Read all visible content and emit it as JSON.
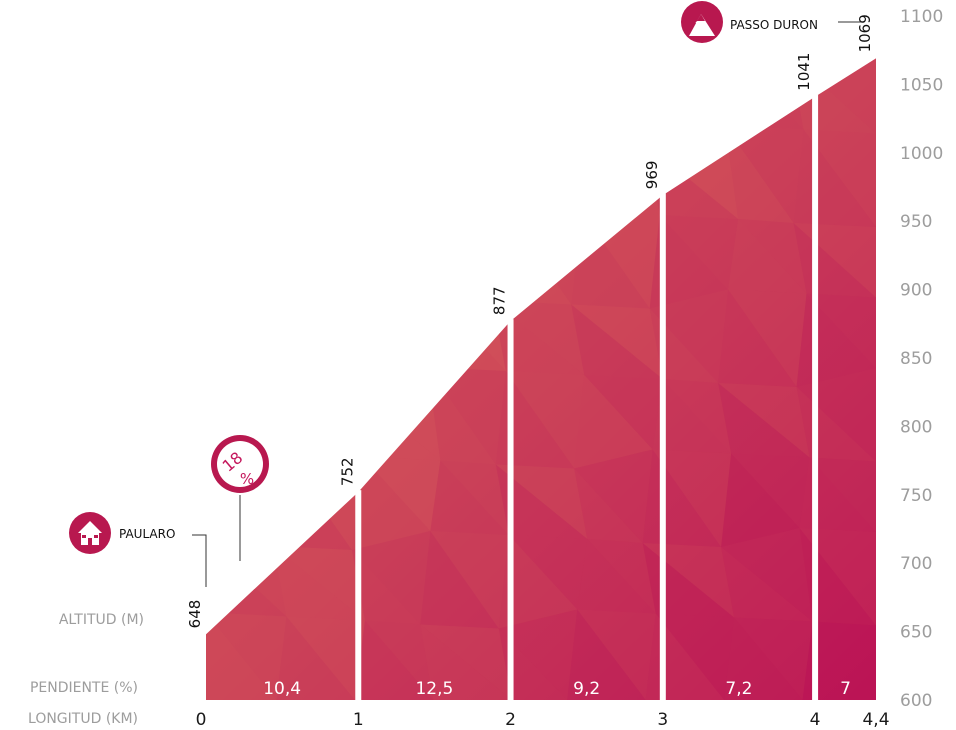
{
  "chart_data": {
    "type": "area",
    "x": [
      0,
      1,
      2,
      3,
      4,
      4.4
    ],
    "x_tick_labels": [
      "0",
      "1",
      "2",
      "3",
      "4",
      "4,4"
    ],
    "altitudes": [
      648,
      752,
      877,
      969,
      1041,
      1069
    ],
    "altitude_labels": [
      "648",
      "752",
      "877",
      "969",
      "1041",
      "1069"
    ],
    "segment_gradients": [
      "10,4",
      "12,5",
      "9,2",
      "7,2",
      "7"
    ],
    "ylim": [
      600,
      1100
    ],
    "y_ticks": [
      "600",
      "650",
      "700",
      "750",
      "800",
      "850",
      "900",
      "950",
      "1000",
      "1050",
      "1100"
    ],
    "row_labels": {
      "altitude": "ALTITUD (M)",
      "gradient": "PENDIENTE (%)",
      "distance": "LONGITUD (KM)"
    },
    "points_of_interest": [
      {
        "name": "PAULARO",
        "icon": "house-icon",
        "km": 0
      },
      {
        "name": "PASSO DURON",
        "icon": "mountain-icon",
        "km": 4.4
      }
    ],
    "max_gradient": {
      "value": "18",
      "unit": "%",
      "icon": "gradient-badge-icon"
    },
    "colors": {
      "fill_light": "#d9655a",
      "fill_dark": "#bf1757",
      "badge": "#b8184f",
      "axis_text": "#9d9d9d"
    },
    "grid": false
  }
}
